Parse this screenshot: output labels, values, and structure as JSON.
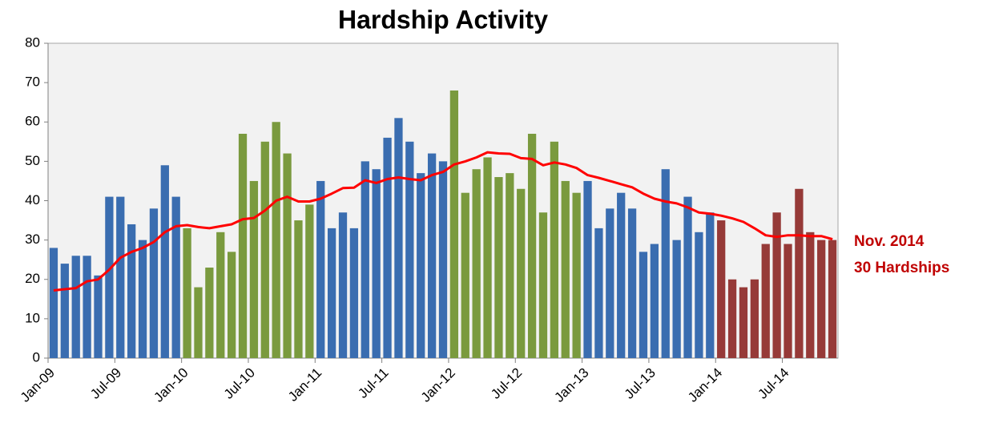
{
  "chart_data": {
    "type": "bar",
    "title": "Hardship Activity",
    "categories": [
      "Jan-09",
      null,
      null,
      null,
      null,
      null,
      "Jul-09",
      null,
      null,
      null,
      null,
      null,
      "Jan-10",
      null,
      null,
      null,
      null,
      null,
      "Jul-10",
      null,
      null,
      null,
      null,
      null,
      "Jan-11",
      null,
      null,
      null,
      null,
      null,
      "Jul-11",
      null,
      null,
      null,
      null,
      null,
      "Jan-12",
      null,
      null,
      null,
      null,
      null,
      "Jul-12",
      null,
      null,
      null,
      null,
      null,
      "Jan-13",
      null,
      null,
      null,
      null,
      null,
      "Jul-13",
      null,
      null,
      null,
      null,
      null,
      "Jan-14",
      null,
      null,
      null,
      null,
      null,
      "Jul-14",
      null,
      null,
      null,
      null
    ],
    "values": [
      28,
      24,
      26,
      26,
      21,
      41,
      41,
      34,
      30,
      38,
      49,
      41,
      33,
      18,
      23,
      32,
      27,
      57,
      45,
      55,
      60,
      52,
      35,
      39,
      45,
      33,
      37,
      33,
      50,
      48,
      56,
      61,
      55,
      47,
      52,
      50,
      68,
      42,
      48,
      51,
      46,
      47,
      43,
      57,
      37,
      55,
      45,
      42,
      45,
      33,
      38,
      42,
      38,
      27,
      29,
      48,
      30,
      41,
      32,
      37,
      35,
      20,
      18,
      20,
      29,
      37,
      29,
      43,
      32,
      30,
      30
    ],
    "colors": [
      "#3a6db0",
      "#3a6db0",
      "#3a6db0",
      "#3a6db0",
      "#3a6db0",
      "#3a6db0",
      "#3a6db0",
      "#3a6db0",
      "#3a6db0",
      "#3a6db0",
      "#3a6db0",
      "#3a6db0",
      "#7a9a3e",
      "#7a9a3e",
      "#7a9a3e",
      "#7a9a3e",
      "#7a9a3e",
      "#7a9a3e",
      "#7a9a3e",
      "#7a9a3e",
      "#7a9a3e",
      "#7a9a3e",
      "#7a9a3e",
      "#7a9a3e",
      "#3a6db0",
      "#3a6db0",
      "#3a6db0",
      "#3a6db0",
      "#3a6db0",
      "#3a6db0",
      "#3a6db0",
      "#3a6db0",
      "#3a6db0",
      "#3a6db0",
      "#3a6db0",
      "#3a6db0",
      "#7a9a3e",
      "#7a9a3e",
      "#7a9a3e",
      "#7a9a3e",
      "#7a9a3e",
      "#7a9a3e",
      "#7a9a3e",
      "#7a9a3e",
      "#7a9a3e",
      "#7a9a3e",
      "#7a9a3e",
      "#7a9a3e",
      "#3a6db0",
      "#3a6db0",
      "#3a6db0",
      "#3a6db0",
      "#3a6db0",
      "#3a6db0",
      "#3a6db0",
      "#3a6db0",
      "#3a6db0",
      "#3a6db0",
      "#3a6db0",
      "#3a6db0",
      "#963a38",
      "#963a38",
      "#963a38",
      "#963a38",
      "#963a38",
      "#963a38",
      "#963a38",
      "#963a38",
      "#963a38",
      "#963a38",
      "#963a38"
    ],
    "trend": {
      "color": "#ff0000",
      "values": [
        17.2,
        17.5,
        17.8,
        19.5,
        20,
        22.5,
        25.5,
        27,
        28,
        29.5,
        32,
        33.5,
        33.8,
        33.3,
        33,
        33.5,
        34,
        35.3,
        35.6,
        37.5,
        40,
        41,
        39.8,
        39.8,
        40.5,
        41.8,
        43.2,
        43.3,
        45.2,
        44.5,
        45.5,
        45.9,
        45.5,
        45.2,
        46.5,
        47.3,
        49.2,
        50,
        51,
        52.3,
        52,
        51.9,
        50.8,
        50.6,
        49,
        49.7,
        49.2,
        48.3,
        46.5,
        45.8,
        45,
        44.2,
        43.4,
        41.8,
        40.5,
        39.8,
        39.3,
        38.3,
        37,
        36.7,
        36.2,
        35.5,
        34.6,
        33,
        31.2,
        30.8,
        31.2,
        31.2,
        31,
        31,
        30.2
      ]
    },
    "annotations": [
      "Nov. 2014",
      "30 Hardships"
    ],
    "ylim": [
      0,
      80
    ],
    "yticks": [
      0,
      10,
      20,
      30,
      40,
      50,
      60,
      70,
      80
    ],
    "grid": false
  }
}
